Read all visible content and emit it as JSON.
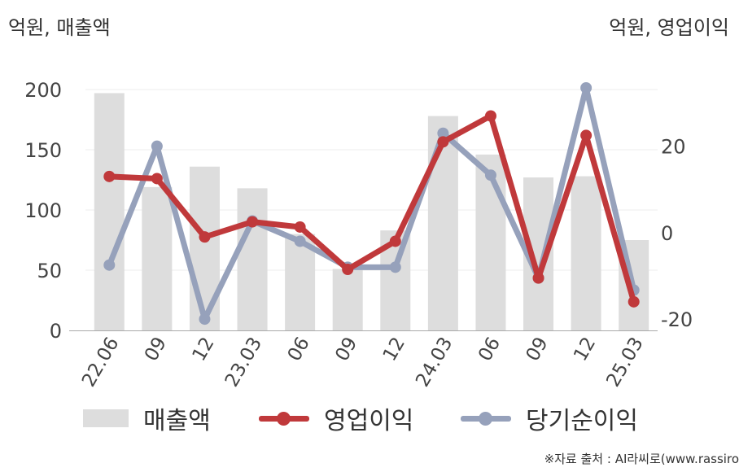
{
  "chart_data": {
    "type": "bar+line",
    "unit_left": "억원, 매출액",
    "unit_right": "억원, 영업이익",
    "categories": [
      "22.06",
      "09",
      "12",
      "23.03",
      "06",
      "09",
      "12",
      "24.03",
      "06",
      "09",
      "12",
      "25.03"
    ],
    "bar_series": {
      "name": "매출액",
      "axis": "left",
      "color": "#dddddd",
      "values": [
        197,
        119,
        136,
        118,
        80,
        51,
        83,
        178,
        146,
        127,
        128,
        75
      ]
    },
    "line_series": [
      {
        "name": "영업이익",
        "axis": "right",
        "color": "#c0393b",
        "values": [
          13,
          12.5,
          -1,
          2.5,
          1.3,
          -8.5,
          -2,
          21,
          27,
          -10.5,
          22.5,
          -16
        ]
      },
      {
        "name": "당기순이익",
        "axis": "right",
        "color": "#96a1bb",
        "values": [
          -7.5,
          20,
          -20,
          2.7,
          -2,
          -8,
          -8,
          23,
          13.3,
          -10.5,
          33.5,
          -13.3
        ]
      }
    ],
    "y_left": {
      "ylim": [
        0,
        200
      ],
      "ticks": [
        0,
        50,
        100,
        150,
        200
      ]
    },
    "y_right": {
      "ylim": [
        -23,
        35
      ],
      "ticks": [
        -20,
        0,
        20
      ]
    },
    "grid": true,
    "legend": "bottom"
  },
  "legend": [
    "매출액",
    "영업이익",
    "당기순이익"
  ],
  "source": "※자료 출처 : AI라씨로(www.rassiro"
}
